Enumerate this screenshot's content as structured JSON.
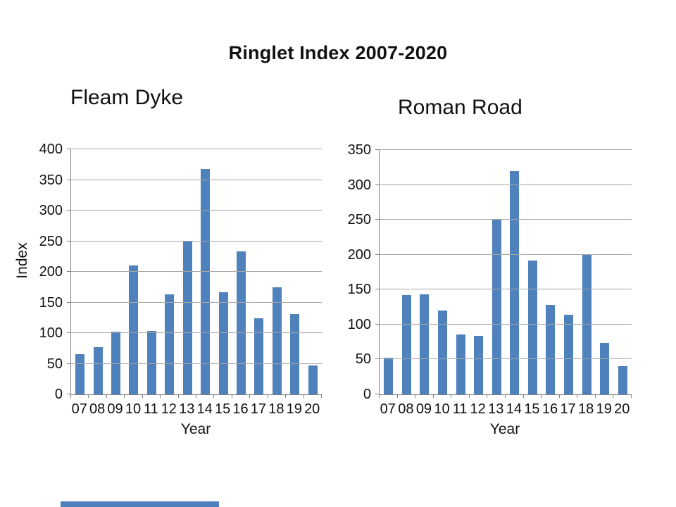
{
  "slide": {
    "title": "Ringlet Index 2007-2020",
    "background_color": "#ffffff",
    "accent_bar_color": "#4f81bd"
  },
  "chart_data": [
    {
      "type": "bar",
      "title": "Fleam Dyke",
      "xlabel": "Year",
      "ylabel": "Index",
      "categories": [
        "07",
        "08",
        "09",
        "10",
        "11",
        "12",
        "13",
        "14",
        "15",
        "16",
        "17",
        "18",
        "19",
        "20"
      ],
      "values": [
        65,
        77,
        102,
        210,
        103,
        163,
        250,
        368,
        167,
        233,
        124,
        175,
        131,
        47
      ],
      "ylim": [
        0,
        400
      ],
      "ytick_step": 50,
      "grid": true,
      "legend": false,
      "bar_color": "#4f81bd",
      "axis_color": "#808080",
      "gridline_color": "#a6a6a6"
    },
    {
      "type": "bar",
      "title": "Roman Road",
      "xlabel": "Year",
      "ylabel": "",
      "categories": [
        "07",
        "08",
        "09",
        "10",
        "11",
        "12",
        "13",
        "14",
        "15",
        "16",
        "17",
        "18",
        "19",
        "20"
      ],
      "values": [
        52,
        142,
        143,
        120,
        86,
        84,
        250,
        320,
        192,
        128,
        114,
        201,
        74,
        40
      ],
      "ylim": [
        0,
        350
      ],
      "ytick_step": 50,
      "grid": true,
      "legend": false,
      "bar_color": "#4f81bd",
      "axis_color": "#808080",
      "gridline_color": "#a6a6a6"
    }
  ]
}
